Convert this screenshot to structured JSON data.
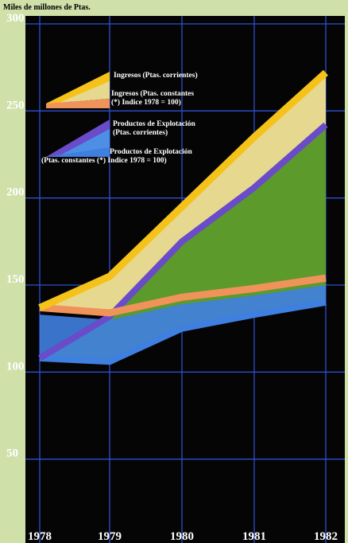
{
  "chart_data": {
    "type": "area",
    "ylabel": "Miles de millones de Ptas.",
    "x": [
      "1978",
      "1979",
      "1980",
      "1981",
      "1982"
    ],
    "ylim": [
      0,
      300
    ],
    "yticks": [
      50,
      100,
      150,
      200,
      250,
      300
    ],
    "grid": true,
    "legend_position": "top-left",
    "series": [
      {
        "name": "Ingresos (Ptas. corrientes)",
        "values": [
          137,
          155,
          195,
          235,
          272
        ],
        "color": "#f5c21a"
      },
      {
        "name_lines": [
          "Ingresos (Ptas. constantes",
          "(*) Indice 1978 = 100)"
        ],
        "values": [
          137,
          134,
          143,
          148,
          154
        ],
        "color": "#f0935a"
      },
      {
        "name_lines": [
          "Productos de Explotación",
          "(Ptas. corrientes)"
        ],
        "values": [
          108,
          132,
          175,
          206,
          242
        ],
        "color": "#6a4bc9"
      },
      {
        "name_lines": [
          "Productos de Explotación",
          "(Ptas. constantes (*) Indice 1978 = 100)"
        ],
        "values": [
          108,
          106,
          125,
          133,
          140
        ],
        "color": "#3f7fe0"
      }
    ]
  },
  "colors": {
    "background": "#cfe0a8",
    "plot_background": "#050505",
    "grid": "#2f4fd0",
    "green_fill": "#5c9a2c",
    "light_band": "#e6d88e"
  }
}
